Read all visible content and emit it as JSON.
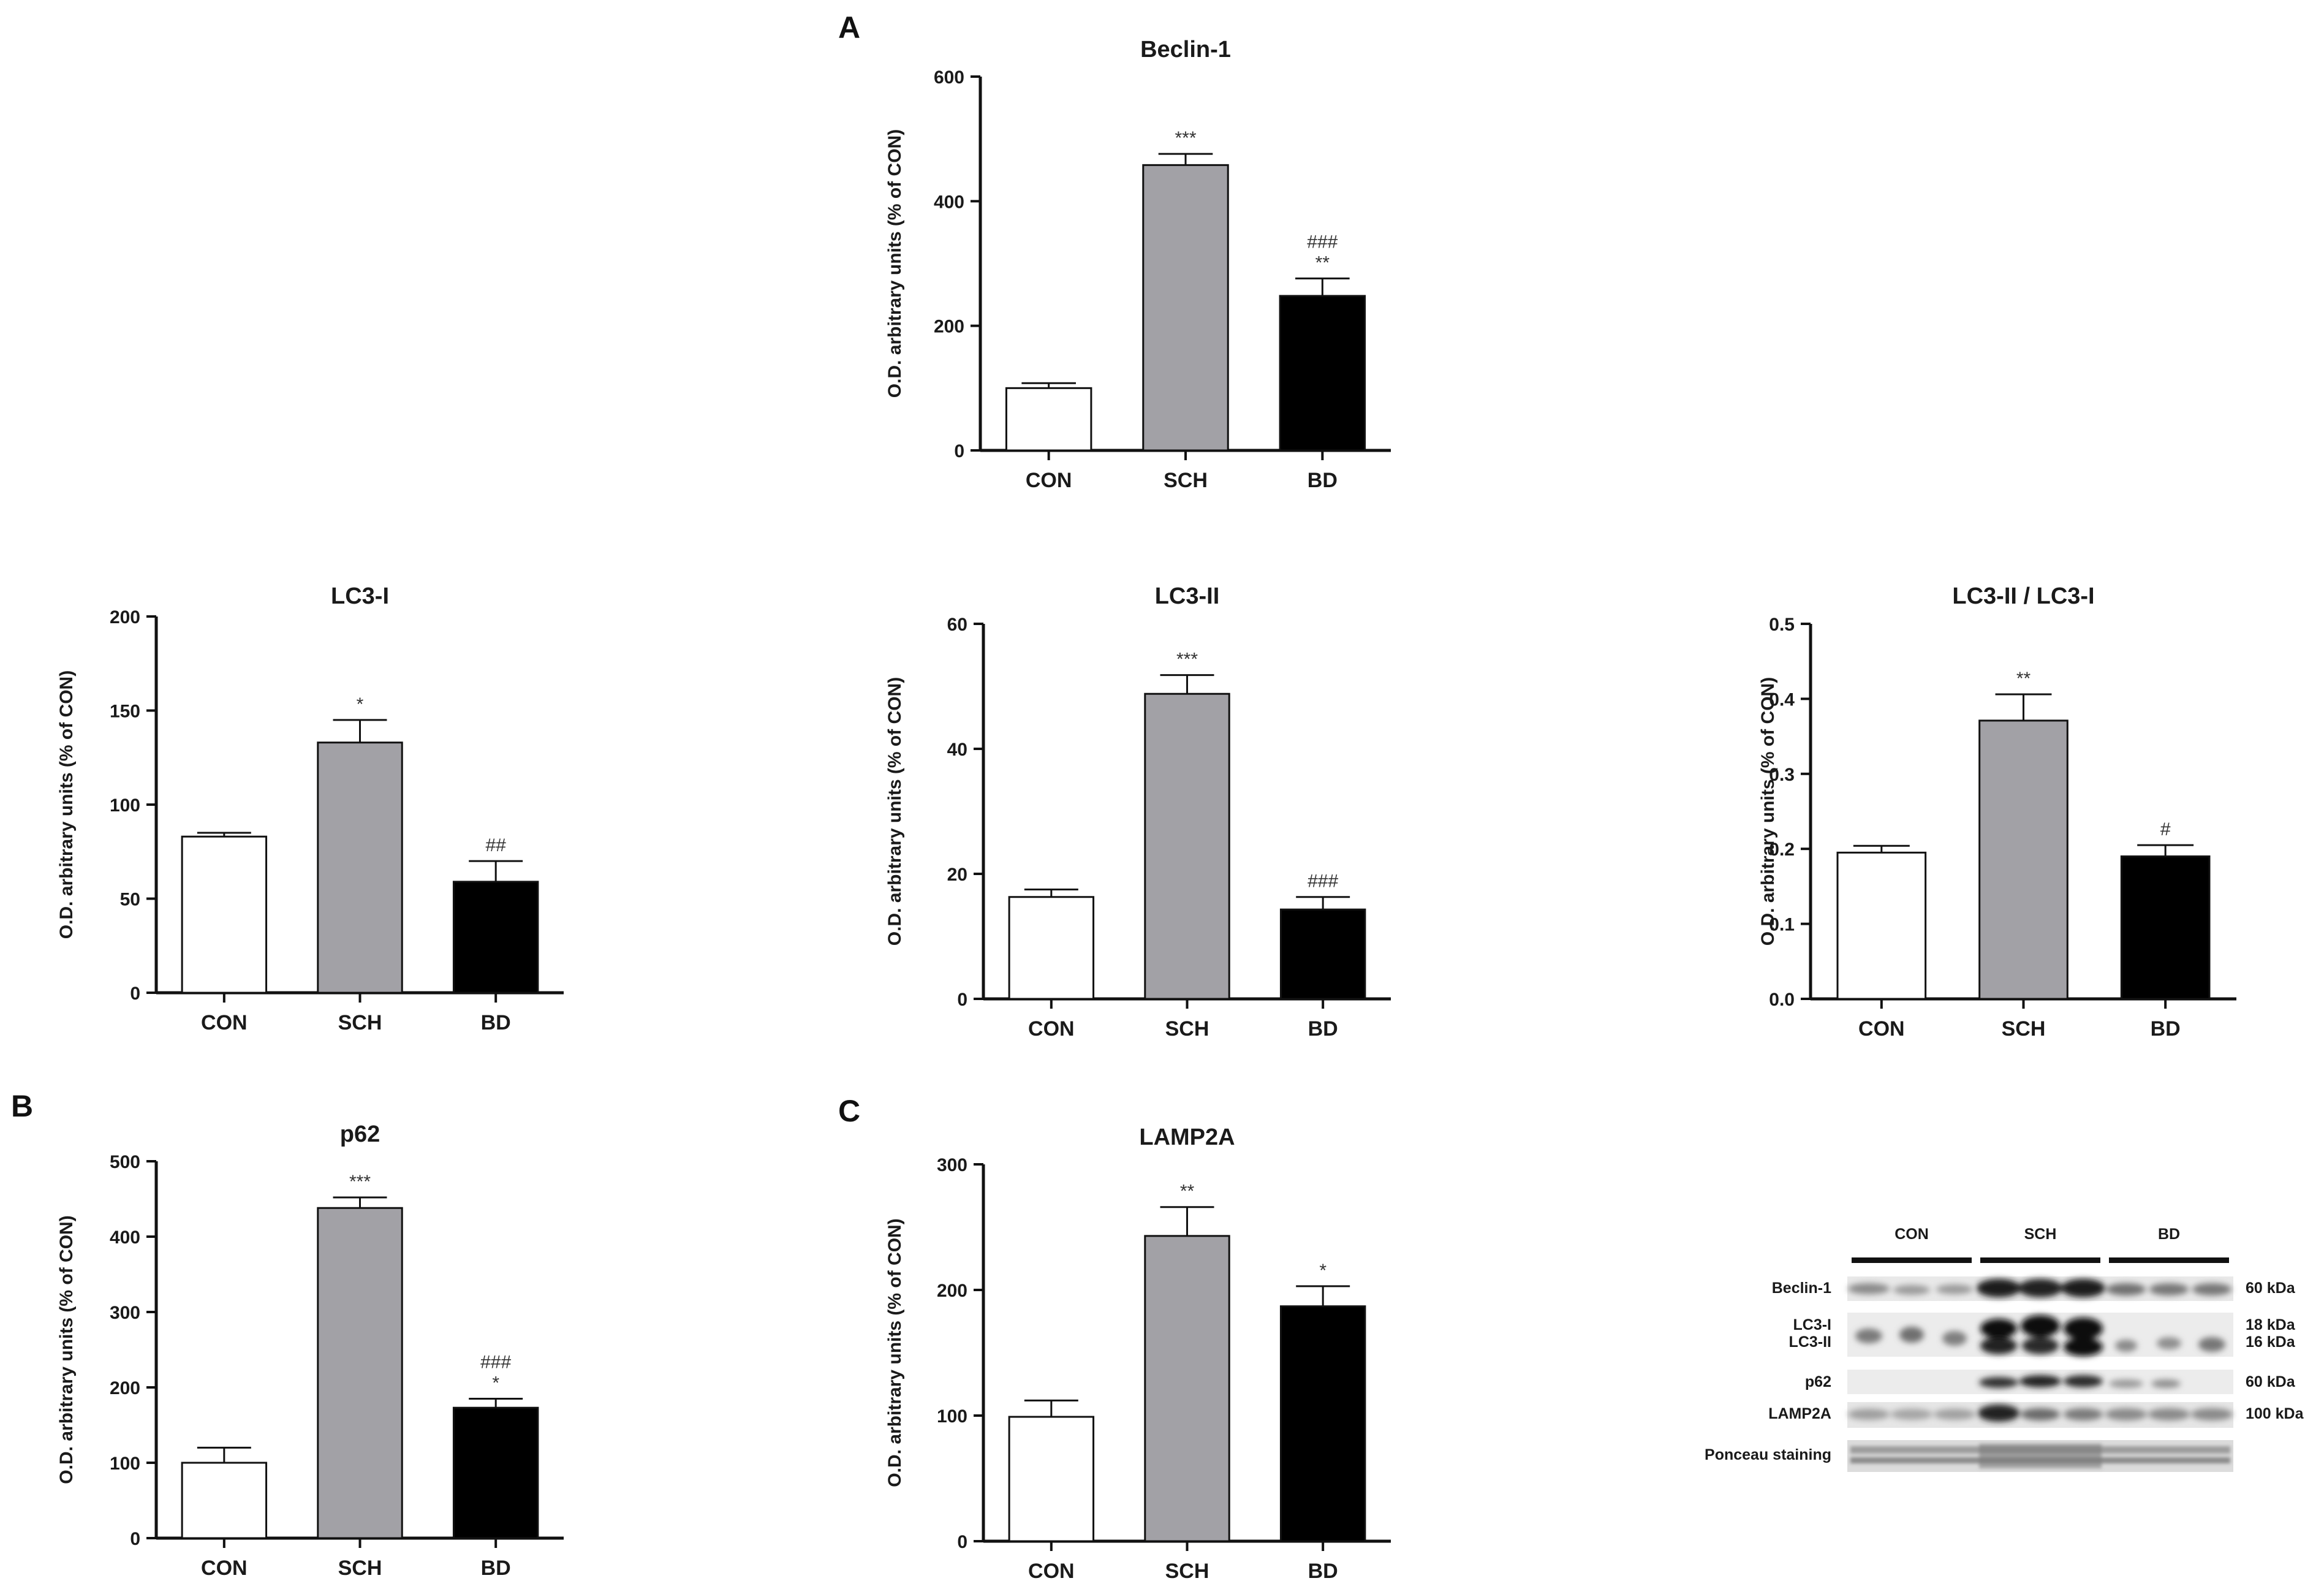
{
  "panel_letters": {
    "a": "A",
    "b": "B",
    "c": "C"
  },
  "colors": {
    "con": "#ffffff",
    "sch": "#a2a1a6",
    "bd": "#000000"
  },
  "chart_data": [
    {
      "id": "beclin1",
      "type": "bar",
      "title": "Beclin-1",
      "ylabel": "O.D. arbitrary units (% of CON)",
      "categories": [
        "CON",
        "SCH",
        "BD"
      ],
      "values": [
        100,
        458,
        248
      ],
      "errors": [
        8,
        18,
        28
      ],
      "significance": [
        "",
        "***",
        "###\n**"
      ],
      "ylim": [
        0,
        600
      ],
      "yticks": [
        "0",
        "200",
        "400",
        "600"
      ]
    },
    {
      "id": "lc3i",
      "type": "bar",
      "title": "LC3-I",
      "ylabel": "O.D. arbitrary units (% of CON)",
      "categories": [
        "CON",
        "SCH",
        "BD"
      ],
      "values": [
        83,
        133,
        59
      ],
      "errors": [
        2,
        12,
        11
      ],
      "significance": [
        "",
        "*",
        "##"
      ],
      "ylim": [
        0,
        200
      ],
      "yticks": [
        "0",
        "50",
        "100",
        "150",
        "200"
      ]
    },
    {
      "id": "lc3ii",
      "type": "bar",
      "title": "LC3-II",
      "ylabel": "O.D. arbitrary units (% of CON)",
      "categories": [
        "CON",
        "SCH",
        "BD"
      ],
      "values": [
        16.3,
        48.8,
        14.3
      ],
      "errors": [
        1.2,
        3.0,
        2.0
      ],
      "significance": [
        "",
        "***",
        "###"
      ],
      "ylim": [
        0,
        60
      ],
      "yticks": [
        "0",
        "20",
        "40",
        "60"
      ]
    },
    {
      "id": "ratio",
      "type": "bar",
      "title": "LC3-II / LC3-I",
      "ylabel": "O.D. arbitrary units (% of CON)",
      "categories": [
        "CON",
        "SCH",
        "BD"
      ],
      "values": [
        0.195,
        0.371,
        0.19
      ],
      "errors": [
        0.009,
        0.035,
        0.015
      ],
      "significance": [
        "",
        "**",
        "#"
      ],
      "ylim": [
        0,
        0.5
      ],
      "yticks": [
        "0.0",
        "0.1",
        "0.2",
        "0.3",
        "0.4",
        "0.5"
      ]
    },
    {
      "id": "p62",
      "type": "bar",
      "title": "p62",
      "ylabel": "O.D. arbitrary units (% of CON)",
      "categories": [
        "CON",
        "SCH",
        "BD"
      ],
      "values": [
        100,
        438,
        173
      ],
      "errors": [
        20,
        14,
        12
      ],
      "significance": [
        "",
        "***",
        "###\n*"
      ],
      "ylim": [
        0,
        500
      ],
      "yticks": [
        "0",
        "100",
        "200",
        "300",
        "400",
        "500"
      ]
    },
    {
      "id": "lamp2a",
      "type": "bar",
      "title": "LAMP2A",
      "ylabel": "O.D. arbitrary units (% of CON)",
      "categories": [
        "CON",
        "SCH",
        "BD"
      ],
      "values": [
        99,
        243,
        187
      ],
      "errors": [
        13,
        23,
        16
      ],
      "significance": [
        "",
        "**",
        "*"
      ],
      "ylim": [
        0,
        300
      ],
      "yticks": [
        "0",
        "100",
        "200",
        "300"
      ]
    }
  ],
  "western_blot": {
    "groups": [
      "CON",
      "SCH",
      "BD"
    ],
    "rows": [
      {
        "label": "Beclin-1",
        "kda": "60 kDa"
      },
      {
        "label": "LC3-I",
        "kda": "18 kDa"
      },
      {
        "label": "LC3-II",
        "kda": "16 kDa"
      },
      {
        "label": "p62",
        "kda": "60 kDa"
      },
      {
        "label": "LAMP2A",
        "kda": "100 kDa"
      },
      {
        "label": "Ponceau staining",
        "kda": ""
      }
    ]
  }
}
